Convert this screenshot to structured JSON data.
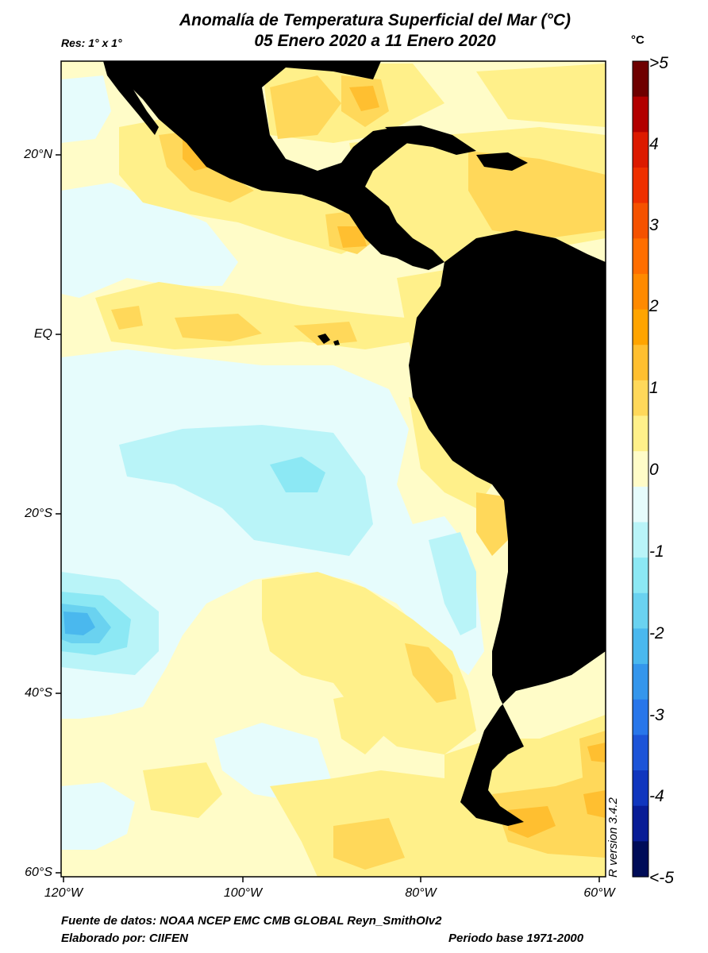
{
  "title_line1": "Anomalía de Temperatura Superficial del Mar (°C)",
  "title_line2": "05 Enero 2020 a 11 Enero 2020",
  "resolution": "Res: 1° x 1°",
  "unit": "°C",
  "r_version": "R version 3.4.2",
  "lat_labels": [
    "20°N",
    "EQ",
    "20°S",
    "40°S",
    "60°S"
  ],
  "lon_labels": [
    "120°W",
    "100°W",
    "80°W",
    "60°W"
  ],
  "colorbar": {
    "labels": [
      ">5",
      "4",
      "3",
      "2",
      "1",
      "0",
      "-1",
      "-2",
      "-3",
      "-4",
      "<-5"
    ],
    "colors": [
      "#6e0000",
      "#b20000",
      "#dc1a00",
      "#ee3000",
      "#f55200",
      "#ff6e00",
      "#ff8a00",
      "#ffa400",
      "#ffbf30",
      "#ffd85a",
      "#fff08a",
      "#fffcc8",
      "#e6fcfc",
      "#b9f4f8",
      "#8ce8f4",
      "#6ad2f0",
      "#4ab8ee",
      "#3496ec",
      "#2876ea",
      "#1c54d8",
      "#1036be",
      "#081c96",
      "#000c58"
    ]
  },
  "footer": {
    "source": "Fuente de datos: NOAA NCEP EMC CMB GLOBAL Reyn_SmithOIv2",
    "author": "Elaborado por: CIIFEN",
    "base_period": "Periodo base 1971-2000"
  }
}
